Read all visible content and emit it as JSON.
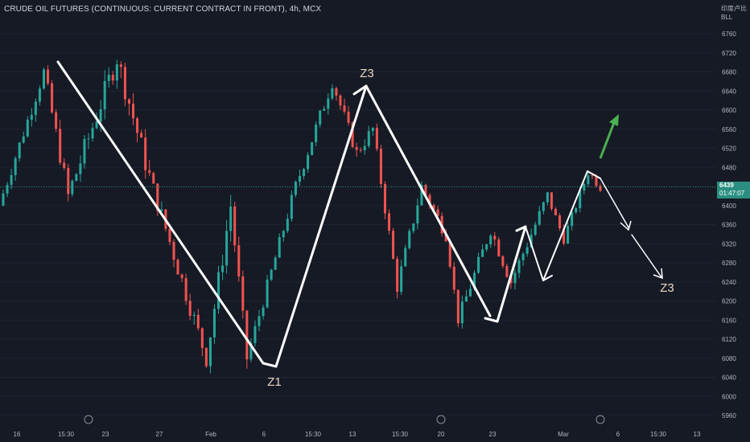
{
  "header": {
    "title": "CRUDE OIL FUTURES (CONTINUOUS: CURRENT CONTRACT IN FRONT), 4h, MCX",
    "cn_label": "印度卢比",
    "currency_label": "BLL"
  },
  "colors": {
    "background": "#161a25",
    "up": "#26a69a",
    "down": "#ef5350",
    "current_price_line": "#2a8f80",
    "drawing": "#ffffff",
    "label": "#ead7c2",
    "arrow_green": "#4caf50"
  },
  "price_axis": {
    "ticks": [
      "6760",
      "6720",
      "6680",
      "6640",
      "6600",
      "6560",
      "6520",
      "6480",
      "6440",
      "6400",
      "6360",
      "6320",
      "6280",
      "6240",
      "6200",
      "6160",
      "6120",
      "6080",
      "6040",
      "6000",
      "5960"
    ]
  },
  "current_price": {
    "value": "6439",
    "countdown": "01:47:07"
  },
  "time_axis": {
    "labels": [
      "16",
      "15:30",
      "23",
      "27",
      "Feb",
      "6",
      "15:30",
      "13",
      "15:30",
      "20",
      "23",
      "Mar",
      "6",
      "15:30",
      "13"
    ]
  },
  "annotations": {
    "labels": [
      "Z1",
      "Z3",
      "Z3"
    ]
  },
  "chart_data": {
    "type": "candlestick",
    "title": "CRUDE OIL FUTURES (CONTINUOUS: CURRENT CONTRACT IN FRONT), 4h, MCX",
    "ylim": [
      5960,
      6780
    ],
    "series": [
      {
        "seg": "A",
        "start": 6400,
        "end": 6680,
        "n": 11,
        "wave": 15
      },
      {
        "seg": "B",
        "start": 6680,
        "end": 6420,
        "n": 6,
        "wave": 20
      },
      {
        "seg": "C",
        "start": 6420,
        "end": 6710,
        "n": 12,
        "wave": 25
      },
      {
        "seg": "D",
        "start": 6710,
        "end": 6460,
        "n": 8,
        "wave": 25
      },
      {
        "seg": "E",
        "start": 6460,
        "end": 6080,
        "n": 14,
        "wave": 20
      },
      {
        "seg": "F",
        "start": 6080,
        "end": 6400,
        "n": 6,
        "wave": 25
      },
      {
        "seg": "G",
        "start": 6400,
        "end": 6080,
        "n": 4,
        "wave": 20
      },
      {
        "seg": "H",
        "start": 6080,
        "end": 6440,
        "n": 12,
        "wave": 15
      },
      {
        "seg": "I",
        "start": 6440,
        "end": 6660,
        "n": 9,
        "wave": 15
      },
      {
        "seg": "J",
        "start": 6660,
        "end": 6510,
        "n": 6,
        "wave": 15
      },
      {
        "seg": "K",
        "start": 6510,
        "end": 6560,
        "n": 4,
        "wave": 15
      },
      {
        "seg": "L",
        "start": 6560,
        "end": 6230,
        "n": 6,
        "wave": 15
      },
      {
        "seg": "M",
        "start": 6230,
        "end": 6440,
        "n": 6,
        "wave": 15
      },
      {
        "seg": "N",
        "start": 6440,
        "end": 6340,
        "n": 6,
        "wave": 15
      },
      {
        "seg": "O",
        "start": 6340,
        "end": 6160,
        "n": 3,
        "wave": 10
      },
      {
        "seg": "P",
        "start": 6160,
        "end": 6350,
        "n": 8,
        "wave": 15
      },
      {
        "seg": "Q",
        "start": 6350,
        "end": 6240,
        "n": 5,
        "wave": 15
      },
      {
        "seg": "R",
        "start": 6240,
        "end": 6420,
        "n": 9,
        "wave": 15
      },
      {
        "seg": "S",
        "start": 6420,
        "end": 6330,
        "n": 4,
        "wave": 10
      },
      {
        "seg": "T",
        "start": 6330,
        "end": 6470,
        "n": 6,
        "wave": 10
      },
      {
        "seg": "U",
        "start": 6470,
        "end": 6439,
        "n": 3,
        "wave": 10
      }
    ],
    "zigzag_lines": [
      {
        "from": [
          6700,
          6700
        ],
        "to": [
          6065,
          6065
        ]
      },
      {
        "from": [
          6065,
          6065
        ],
        "to": [
          6650,
          6650
        ]
      },
      {
        "from": [
          6650,
          6650
        ],
        "to": [
          6155,
          6155
        ]
      }
    ]
  }
}
